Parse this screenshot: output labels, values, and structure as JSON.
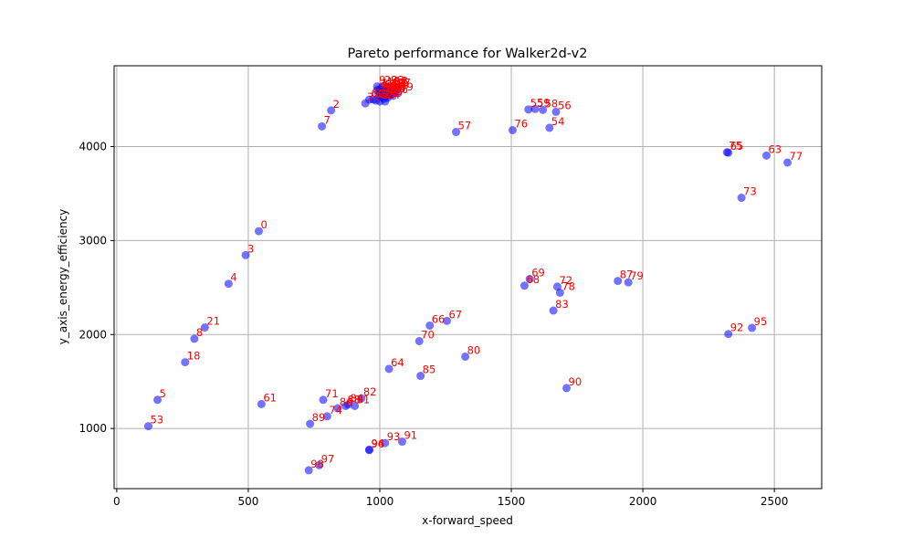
{
  "chart_data": {
    "type": "scatter",
    "title": "Pareto performance for Walker2d-v2",
    "xlabel": "x-forward_speed",
    "ylabel": "y_axis_energy_efficiency",
    "xlim": [
      -10,
      2680
    ],
    "ylim": [
      360,
      4860
    ],
    "xticks": [
      0,
      500,
      1000,
      1500,
      2000,
      2500
    ],
    "yticks": [
      1000,
      2000,
      3000,
      4000
    ],
    "grid": true,
    "colors": {
      "marker": "#0000ff",
      "label": "#ff0000",
      "grid": "#b0b0b0"
    },
    "points": [
      {
        "label": "0",
        "x": 540,
        "y": 3100
      },
      {
        "label": "2",
        "x": 815,
        "y": 4385
      },
      {
        "label": "3",
        "x": 490,
        "y": 2845
      },
      {
        "label": "4",
        "x": 425,
        "y": 2540
      },
      {
        "label": "5",
        "x": 155,
        "y": 1305
      },
      {
        "label": "7",
        "x": 780,
        "y": 4215
      },
      {
        "label": "8",
        "x": 295,
        "y": 1955
      },
      {
        "label": "18",
        "x": 260,
        "y": 1705
      },
      {
        "label": "21",
        "x": 335,
        "y": 2075
      },
      {
        "label": "53",
        "x": 120,
        "y": 1025
      },
      {
        "label": "54",
        "x": 1645,
        "y": 4200
      },
      {
        "label": "55",
        "x": 1565,
        "y": 4395
      },
      {
        "label": "56",
        "x": 1670,
        "y": 4370
      },
      {
        "label": "57",
        "x": 1290,
        "y": 4155
      },
      {
        "label": "58",
        "x": 1620,
        "y": 4390
      },
      {
        "label": "59",
        "x": 1590,
        "y": 4400
      },
      {
        "label": "60",
        "x": 960,
        "y": 4500
      },
      {
        "label": "61",
        "x": 550,
        "y": 1260
      },
      {
        "label": "63",
        "x": 2470,
        "y": 3905
      },
      {
        "label": "64",
        "x": 1035,
        "y": 1635
      },
      {
        "label": "65",
        "x": 2325,
        "y": 3935
      },
      {
        "label": "66",
        "x": 1190,
        "y": 2095
      },
      {
        "label": "67",
        "x": 1255,
        "y": 2145
      },
      {
        "label": "68",
        "x": 1550,
        "y": 2520
      },
      {
        "label": "69",
        "x": 1570,
        "y": 2590
      },
      {
        "label": "70",
        "x": 1150,
        "y": 1930
      },
      {
        "label": "71",
        "x": 785,
        "y": 1305
      },
      {
        "label": "72",
        "x": 1675,
        "y": 2510
      },
      {
        "label": "73",
        "x": 2375,
        "y": 3455
      },
      {
        "label": "74",
        "x": 800,
        "y": 1130
      },
      {
        "label": "75",
        "x": 2320,
        "y": 3940
      },
      {
        "label": "76",
        "x": 1505,
        "y": 4175
      },
      {
        "label": "77",
        "x": 2550,
        "y": 3830
      },
      {
        "label": "78",
        "x": 1685,
        "y": 2445
      },
      {
        "label": "79",
        "x": 1945,
        "y": 2555
      },
      {
        "label": "80",
        "x": 1325,
        "y": 1765
      },
      {
        "label": "81",
        "x": 905,
        "y": 1240
      },
      {
        "label": "82",
        "x": 930,
        "y": 1320
      },
      {
        "label": "83",
        "x": 1660,
        "y": 2255
      },
      {
        "label": "84",
        "x": 880,
        "y": 1255
      },
      {
        "label": "85",
        "x": 1155,
        "y": 1560
      },
      {
        "label": "86",
        "x": 840,
        "y": 1215
      },
      {
        "label": "87",
        "x": 1905,
        "y": 2570
      },
      {
        "label": "88",
        "x": 870,
        "y": 1240
      },
      {
        "label": "89",
        "x": 735,
        "y": 1050
      },
      {
        "label": "90",
        "x": 1710,
        "y": 1430
      },
      {
        "label": "91",
        "x": 1085,
        "y": 860
      },
      {
        "label": "92",
        "x": 2325,
        "y": 2005
      },
      {
        "label": "93",
        "x": 1020,
        "y": 845
      },
      {
        "label": "94",
        "x": 960,
        "y": 775
      },
      {
        "label": "95",
        "x": 2415,
        "y": 2070
      },
      {
        "label": "96",
        "x": 960,
        "y": 770
      },
      {
        "label": "97",
        "x": 770,
        "y": 610
      },
      {
        "label": "98",
        "x": 730,
        "y": 555
      },
      {
        "label": "9",
        "x": 990,
        "y": 4640
      },
      {
        "label": "99",
        "x": 1070,
        "y": 4570
      },
      {
        "label": "1",
        "x": 1000,
        "y": 4610
      },
      {
        "label": "6",
        "x": 1010,
        "y": 4595
      },
      {
        "label": "10",
        "x": 1020,
        "y": 4620
      },
      {
        "label": "11",
        "x": 1030,
        "y": 4580
      },
      {
        "label": "12",
        "x": 1040,
        "y": 4610
      },
      {
        "label": "13",
        "x": 1050,
        "y": 4630
      },
      {
        "label": "14",
        "x": 1015,
        "y": 4560
      },
      {
        "label": "15",
        "x": 1025,
        "y": 4540
      },
      {
        "label": "16",
        "x": 1035,
        "y": 4600
      },
      {
        "label": "17",
        "x": 1045,
        "y": 4570
      },
      {
        "label": "19",
        "x": 1055,
        "y": 4590
      },
      {
        "label": "20",
        "x": 1005,
        "y": 4530
      },
      {
        "label": "22",
        "x": 985,
        "y": 4490
      },
      {
        "label": "23",
        "x": 1000,
        "y": 4480
      },
      {
        "label": "24",
        "x": 1020,
        "y": 4480
      },
      {
        "label": "25",
        "x": 1030,
        "y": 4520
      },
      {
        "label": "26",
        "x": 1040,
        "y": 4550
      },
      {
        "label": "27",
        "x": 1060,
        "y": 4610
      },
      {
        "label": "28",
        "x": 995,
        "y": 4560
      },
      {
        "label": "29",
        "x": 1010,
        "y": 4640
      },
      {
        "label": "30",
        "x": 975,
        "y": 4500
      },
      {
        "label": "31",
        "x": 945,
        "y": 4460
      },
      {
        "label": "32",
        "x": 1025,
        "y": 4600
      },
      {
        "label": "33",
        "x": 1035,
        "y": 4640
      },
      {
        "label": "34",
        "x": 1045,
        "y": 4620
      },
      {
        "label": "35",
        "x": 1015,
        "y": 4510
      },
      {
        "label": "36",
        "x": 1050,
        "y": 4540
      },
      {
        "label": "37",
        "x": 990,
        "y": 4600
      },
      {
        "label": "38",
        "x": 1005,
        "y": 4570
      },
      {
        "label": "39",
        "x": 1020,
        "y": 4560
      }
    ]
  }
}
